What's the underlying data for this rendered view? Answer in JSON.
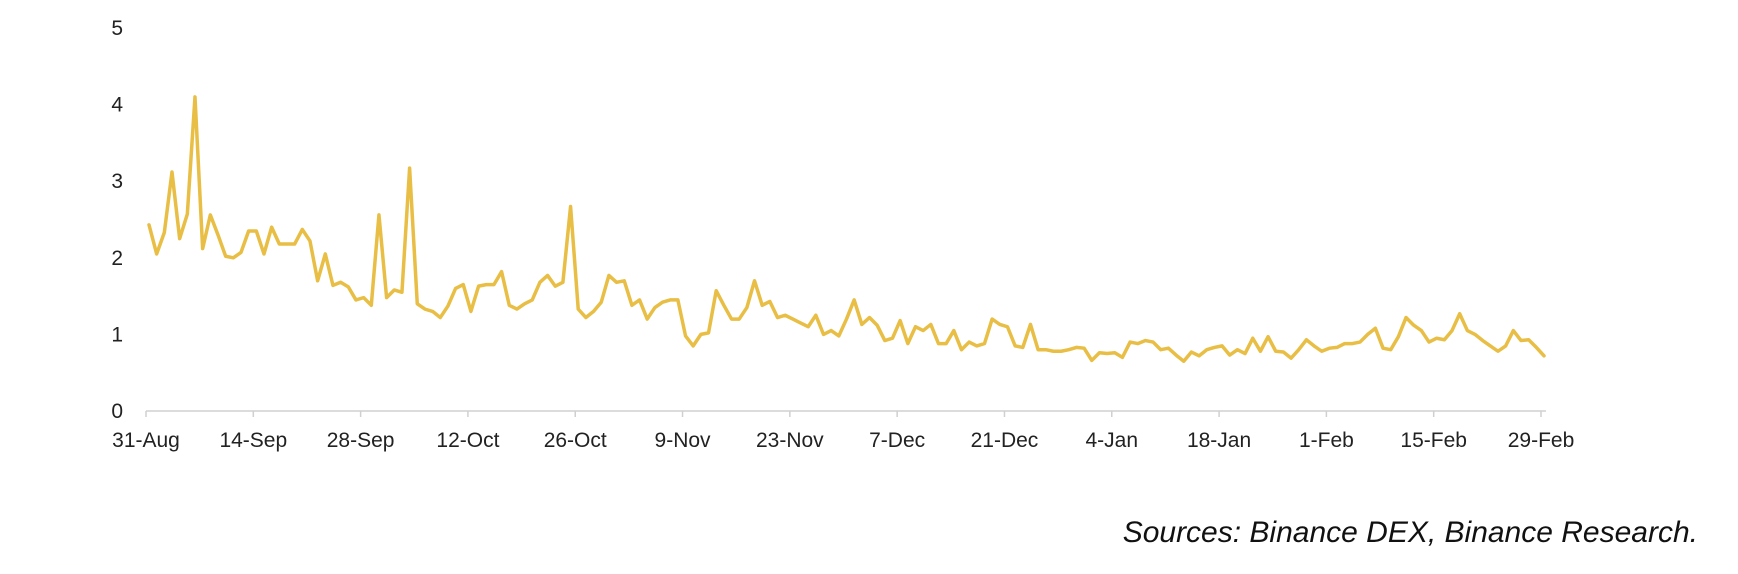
{
  "chart_data": {
    "type": "line",
    "title": "",
    "xlabel": "",
    "ylabel": "",
    "ylim": [
      0,
      5
    ],
    "y_ticks": [
      "0",
      "1",
      "2",
      "3",
      "4",
      "5"
    ],
    "x_tick_labels": [
      "31-Aug",
      "14-Sep",
      "28-Sep",
      "12-Oct",
      "26-Oct",
      "9-Nov",
      "23-Nov",
      "7-Dec",
      "21-Dec",
      "4-Jan",
      "18-Jan",
      "1-Feb",
      "15-Feb",
      "29-Feb"
    ],
    "grid": false,
    "legend": "none",
    "x_start": "31-Aug",
    "x_end": "29-Feb",
    "series": [
      {
        "color": "#E8BE45",
        "values": [
          2.43,
          2.05,
          2.33,
          3.12,
          2.25,
          2.57,
          4.1,
          2.12,
          2.56,
          2.3,
          2.02,
          2.0,
          2.07,
          2.35,
          2.35,
          2.05,
          2.4,
          2.18,
          2.18,
          2.18,
          2.37,
          2.22,
          1.7,
          2.05,
          1.64,
          1.68,
          1.62,
          1.45,
          1.48,
          1.38,
          2.56,
          1.48,
          1.58,
          1.55,
          3.17,
          1.4,
          1.33,
          1.3,
          1.22,
          1.37,
          1.6,
          1.65,
          1.3,
          1.63,
          1.65,
          1.65,
          1.82,
          1.38,
          1.33,
          1.4,
          1.45,
          1.68,
          1.77,
          1.63,
          1.68,
          2.67,
          1.33,
          1.22,
          1.3,
          1.42,
          1.77,
          1.68,
          1.7,
          1.38,
          1.45,
          1.2,
          1.35,
          1.42,
          1.45,
          1.45,
          0.98,
          0.85,
          1.0,
          1.02,
          1.57,
          1.38,
          1.2,
          1.2,
          1.35,
          1.7,
          1.38,
          1.43,
          1.22,
          1.25,
          1.2,
          1.15,
          1.1,
          1.25,
          1.0,
          1.05,
          0.98,
          1.2,
          1.45,
          1.13,
          1.22,
          1.12,
          0.92,
          0.95,
          1.18,
          0.88,
          1.1,
          1.05,
          1.13,
          0.88,
          0.88,
          1.05,
          0.8,
          0.9,
          0.85,
          0.88,
          1.2,
          1.13,
          1.1,
          0.85,
          0.83,
          1.13,
          0.8,
          0.8,
          0.78,
          0.78,
          0.8,
          0.83,
          0.82,
          0.66,
          0.76,
          0.75,
          0.76,
          0.7,
          0.9,
          0.88,
          0.92,
          0.9,
          0.8,
          0.82,
          0.73,
          0.65,
          0.77,
          0.72,
          0.8,
          0.83,
          0.85,
          0.73,
          0.8,
          0.75,
          0.95,
          0.78,
          0.97,
          0.78,
          0.77,
          0.69,
          0.8,
          0.93,
          0.85,
          0.78,
          0.82,
          0.83,
          0.88,
          0.88,
          0.9,
          1.0,
          1.08,
          0.82,
          0.8,
          0.97,
          1.22,
          1.12,
          1.05,
          0.9,
          0.95,
          0.93,
          1.05,
          1.27,
          1.05,
          1.0,
          0.92,
          0.85,
          0.78,
          0.85,
          1.05,
          0.92,
          0.93,
          0.83,
          0.72
        ]
      }
    ]
  },
  "sources_text": "Sources: Binance DEX, Binance Research."
}
